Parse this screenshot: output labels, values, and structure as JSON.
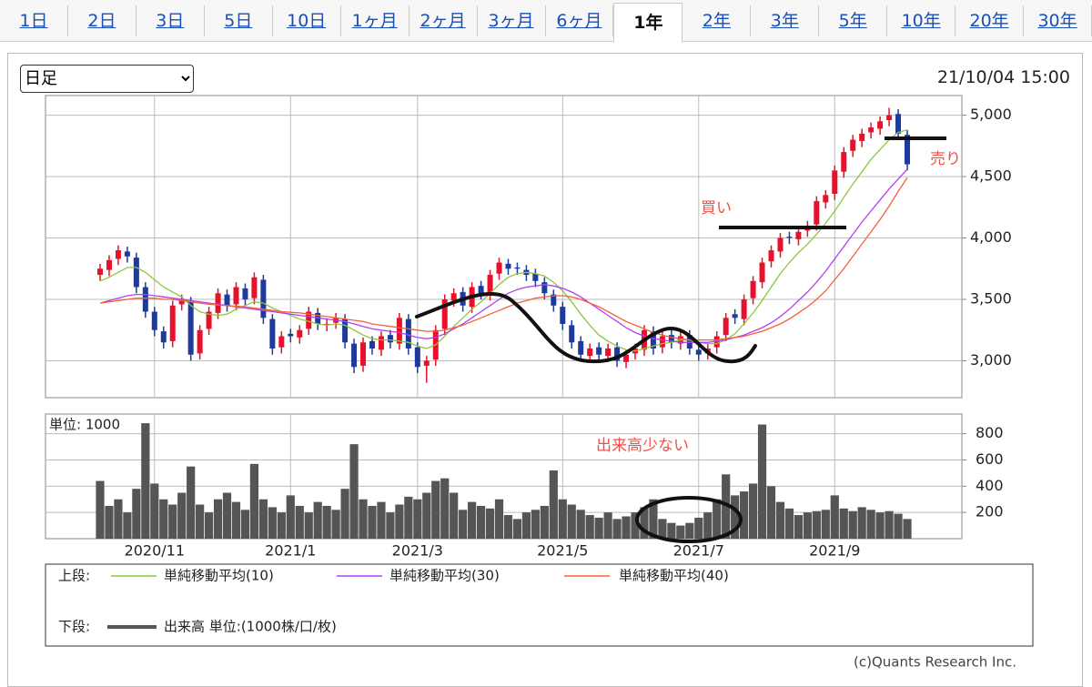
{
  "tabs": [
    "1日",
    "2日",
    "3日",
    "5日",
    "10日",
    "1ヶ月",
    "2ヶ月",
    "3ヶ月",
    "6ヶ月",
    "1年",
    "2年",
    "3年",
    "5年",
    "10年",
    "20年",
    "30年"
  ],
  "active_tab": 9,
  "period_select": "日足",
  "timestamp": "21/10/04 15:00",
  "copyright": "(c)Quants Research Inc.",
  "chart_data": [
    {
      "type": "candlestick",
      "legend_label": "上段:",
      "up_color": "#e8102b",
      "down_color": "#1c3b9c",
      "open": [
        3700,
        3740,
        3830,
        3890,
        3840,
        3600,
        3400,
        3240,
        3160,
        3460,
        3480,
        3060,
        3260,
        3390,
        3540,
        3460,
        3590,
        3510,
        3660,
        3340,
        3110,
        3220,
        3190,
        3260,
        3390,
        3290,
        3310,
        3340,
        3140,
        2960,
        3160,
        3090,
        3210,
        3140,
        3340,
        3110,
        2960,
        3010,
        3260,
        3490,
        3560,
        3440,
        3610,
        3540,
        3710,
        3790,
        3760,
        3740,
        3710,
        3640,
        3540,
        3440,
        3290,
        3160,
        3040,
        3110,
        3040,
        3110,
        2990,
        3060,
        3090,
        3240,
        3110,
        3210,
        3140,
        3210,
        3090,
        3060,
        3110,
        3210,
        3380,
        3340,
        3510,
        3640,
        3810,
        3890,
        4010,
        3990,
        4060,
        4110,
        4290,
        4360,
        4540,
        4710,
        4790,
        4860,
        4890,
        4960,
        5010,
        4840
      ],
      "high": [
        3790,
        3860,
        3940,
        3930,
        3880,
        3640,
        3440,
        3280,
        3490,
        3540,
        3520,
        3290,
        3440,
        3590,
        3580,
        3640,
        3630,
        3720,
        3700,
        3380,
        3240,
        3260,
        3290,
        3440,
        3430,
        3340,
        3390,
        3380,
        3180,
        3190,
        3200,
        3240,
        3250,
        3390,
        3380,
        3150,
        3040,
        3290,
        3540,
        3590,
        3600,
        3640,
        3650,
        3740,
        3840,
        3830,
        3800,
        3780,
        3750,
        3680,
        3580,
        3480,
        3330,
        3200,
        3140,
        3150,
        3140,
        3150,
        3090,
        3140,
        3290,
        3280,
        3240,
        3250,
        3240,
        3250,
        3130,
        3140,
        3240,
        3390,
        3420,
        3540,
        3690,
        3840,
        3940,
        4040,
        4050,
        4090,
        4140,
        4340,
        4390,
        4590,
        4740,
        4840,
        4890,
        4940,
        4990,
        5060,
        5050,
        4880
      ],
      "low": [
        3650,
        3690,
        3780,
        3800,
        3550,
        3350,
        3200,
        3100,
        3110,
        3410,
        3000,
        3010,
        3210,
        3340,
        3400,
        3410,
        3450,
        3460,
        3300,
        3050,
        3060,
        3150,
        3140,
        3210,
        3250,
        3240,
        3260,
        3100,
        2900,
        2910,
        3050,
        3040,
        3100,
        3090,
        3050,
        2900,
        2820,
        2960,
        3210,
        3440,
        3400,
        3390,
        3500,
        3490,
        3660,
        3700,
        3700,
        3650,
        3600,
        3500,
        3400,
        3250,
        3100,
        3000,
        2990,
        3000,
        2990,
        2950,
        2940,
        3010,
        3040,
        3050,
        3060,
        3100,
        3090,
        3050,
        3000,
        3010,
        3060,
        3160,
        3300,
        3290,
        3460,
        3590,
        3760,
        3840,
        3950,
        3940,
        4010,
        4060,
        4240,
        4310,
        4490,
        4660,
        4740,
        4810,
        4840,
        4910,
        4800,
        4550
      ],
      "close": [
        3750,
        3820,
        3900,
        3850,
        3600,
        3400,
        3250,
        3150,
        3450,
        3500,
        3050,
        3250,
        3400,
        3550,
        3450,
        3600,
        3500,
        3680,
        3350,
        3100,
        3200,
        3200,
        3250,
        3400,
        3300,
        3300,
        3350,
        3150,
        2950,
        3150,
        3100,
        3200,
        3150,
        3350,
        3100,
        2950,
        3000,
        3250,
        3500,
        3550,
        3450,
        3600,
        3550,
        3700,
        3800,
        3750,
        3750,
        3700,
        3650,
        3550,
        3450,
        3300,
        3150,
        3050,
        3100,
        3050,
        3100,
        3000,
        3050,
        3100,
        3250,
        3100,
        3200,
        3150,
        3200,
        3100,
        3050,
        3100,
        3200,
        3350,
        3350,
        3500,
        3650,
        3800,
        3900,
        4000,
        4000,
        4050,
        4100,
        4300,
        4350,
        4550,
        4700,
        4800,
        4850,
        4900,
        4950,
        5000,
        4850,
        4600
      ],
      "series": [
        {
          "name": "単純移動平均(10)",
          "color": "#8cc63f",
          "values": [
            3650,
            3680,
            3720,
            3760,
            3760,
            3720,
            3660,
            3600,
            3560,
            3520,
            3450,
            3400,
            3380,
            3370,
            3380,
            3420,
            3450,
            3480,
            3470,
            3430,
            3400,
            3370,
            3340,
            3320,
            3300,
            3290,
            3300,
            3290,
            3250,
            3210,
            3180,
            3170,
            3170,
            3160,
            3150,
            3120,
            3100,
            3130,
            3200,
            3280,
            3350,
            3420,
            3480,
            3550,
            3620,
            3680,
            3710,
            3720,
            3710,
            3690,
            3640,
            3570,
            3480,
            3380,
            3290,
            3210,
            3160,
            3120,
            3090,
            3080,
            3100,
            3120,
            3140,
            3150,
            3170,
            3170,
            3150,
            3140,
            3140,
            3170,
            3220,
            3300,
            3390,
            3490,
            3600,
            3710,
            3800,
            3880,
            3950,
            4030,
            4120,
            4220,
            4330,
            4440,
            4540,
            4640,
            4720,
            4800,
            4860,
            4880
          ]
        },
        {
          "name": "単純移動平均(30)",
          "color": "#b040f0",
          "values": [
            3470,
            3490,
            3510,
            3530,
            3540,
            3540,
            3530,
            3520,
            3510,
            3500,
            3490,
            3480,
            3470,
            3460,
            3450,
            3440,
            3430,
            3420,
            3410,
            3400,
            3390,
            3380,
            3370,
            3360,
            3350,
            3340,
            3330,
            3320,
            3300,
            3280,
            3260,
            3250,
            3240,
            3230,
            3210,
            3190,
            3180,
            3190,
            3220,
            3260,
            3300,
            3350,
            3400,
            3450,
            3500,
            3550,
            3580,
            3600,
            3610,
            3620,
            3610,
            3590,
            3560,
            3520,
            3470,
            3420,
            3370,
            3320,
            3270,
            3230,
            3200,
            3180,
            3170,
            3160,
            3150,
            3150,
            3150,
            3150,
            3160,
            3170,
            3190,
            3210,
            3240,
            3270,
            3310,
            3360,
            3420,
            3490,
            3560,
            3640,
            3730,
            3830,
            3930,
            4030,
            4130,
            4220,
            4310,
            4400,
            4480,
            4560
          ]
        },
        {
          "name": "単純移動平均(40)",
          "color": "#f5603a",
          "values": [
            3470,
            3480,
            3490,
            3500,
            3510,
            3510,
            3510,
            3500,
            3500,
            3490,
            3480,
            3470,
            3460,
            3455,
            3450,
            3445,
            3440,
            3430,
            3420,
            3410,
            3400,
            3395,
            3390,
            3380,
            3370,
            3360,
            3350,
            3340,
            3330,
            3320,
            3300,
            3290,
            3280,
            3270,
            3260,
            3250,
            3240,
            3240,
            3250,
            3270,
            3290,
            3320,
            3350,
            3380,
            3410,
            3440,
            3470,
            3490,
            3510,
            3520,
            3530,
            3530,
            3520,
            3500,
            3470,
            3440,
            3400,
            3360,
            3320,
            3290,
            3260,
            3230,
            3210,
            3190,
            3180,
            3170,
            3170,
            3170,
            3170,
            3180,
            3190,
            3200,
            3220,
            3240,
            3270,
            3300,
            3340,
            3390,
            3440,
            3500,
            3570,
            3660,
            3750,
            3850,
            3950,
            4050,
            4150,
            4260,
            4380,
            4490
          ]
        }
      ],
      "ylim": [
        2700,
        5160
      ],
      "yticks": [
        {
          "value": 3000,
          "label": "3,000"
        },
        {
          "value": 3500,
          "label": "3,500"
        },
        {
          "value": 4000,
          "label": "4,000"
        },
        {
          "value": 4500,
          "label": "4,500"
        },
        {
          "value": 5000,
          "label": "5,000"
        }
      ],
      "annotations": [
        "売り",
        "買い"
      ]
    },
    {
      "type": "bar",
      "legend_label": "下段:",
      "unit_label": "単位: 1000",
      "categories": [
        null,
        null,
        null,
        null,
        null,
        null,
        "2020/11",
        null,
        null,
        null,
        null,
        null,
        null,
        null,
        null,
        null,
        null,
        null,
        null,
        null,
        null,
        "2021/1",
        null,
        null,
        null,
        null,
        null,
        null,
        null,
        null,
        null,
        null,
        null,
        null,
        null,
        "2021/3",
        null,
        null,
        null,
        null,
        null,
        null,
        null,
        null,
        null,
        null,
        null,
        null,
        null,
        null,
        null,
        "2021/5",
        null,
        null,
        null,
        null,
        null,
        null,
        null,
        null,
        null,
        null,
        null,
        null,
        null,
        null,
        "2021/7",
        null,
        null,
        null,
        null,
        null,
        null,
        null,
        null,
        null,
        null,
        null,
        null,
        null,
        null,
        "2021/9",
        null,
        null,
        null,
        null,
        null,
        null,
        null,
        null
      ],
      "series": [
        {
          "name": "出来高 単位:(1000株/口/枚)",
          "color": "#555555",
          "values": [
            440,
            250,
            300,
            200,
            380,
            880,
            420,
            300,
            260,
            350,
            550,
            260,
            200,
            300,
            350,
            280,
            220,
            570,
            300,
            240,
            200,
            330,
            250,
            200,
            280,
            250,
            220,
            380,
            720,
            300,
            250,
            280,
            200,
            260,
            320,
            300,
            350,
            440,
            460,
            350,
            220,
            280,
            250,
            230,
            300,
            180,
            150,
            200,
            220,
            250,
            520,
            300,
            260,
            220,
            180,
            160,
            200,
            150,
            170,
            200,
            240,
            300,
            150,
            120,
            100,
            120,
            160,
            200,
            300,
            490,
            330,
            360,
            420,
            870,
            400,
            280,
            230,
            180,
            200,
            210,
            220,
            330,
            230,
            210,
            240,
            220,
            200,
            210,
            190,
            150
          ]
        }
      ],
      "ylim": [
        0,
        950
      ],
      "yticks": [
        200,
        400,
        600,
        800
      ],
      "annotations": [
        "出来高少ない"
      ]
    }
  ]
}
